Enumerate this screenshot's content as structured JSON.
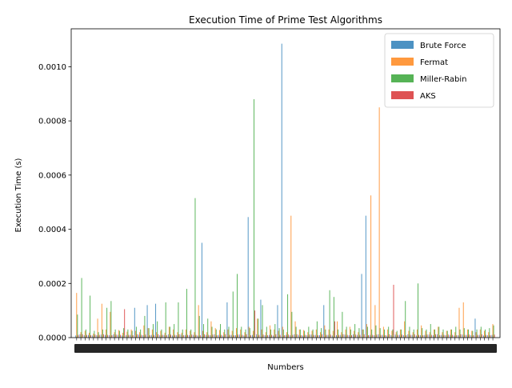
{
  "chart_data": {
    "type": "bar",
    "title": "Execution Time of Prime Test Algorithms",
    "xlabel": "Numbers",
    "ylabel": "Execution Time (s)",
    "ylim": [
      0,
      0.00114
    ],
    "yticks": [
      "0.0000",
      "0.0002",
      "0.0004",
      "0.0006",
      "0.0008",
      "0.0010"
    ],
    "ytick_values": [
      0,
      0.0002,
      0.0004,
      0.0006,
      0.0008,
      0.001
    ],
    "categories_count": 100,
    "xtick_note": "Tick labels along the x-axis are dense overlapping number labels and are not individually legible.",
    "legend_position": "top-right",
    "series": [
      {
        "name": "Brute Force",
        "color": "#1f77b4",
        "values": [
          8e-06,
          1.2e-05,
          9e-06,
          1e-05,
          8e-06,
          9e-06,
          1.1e-05,
          1e-05,
          9e-06,
          1.2e-05,
          1e-05,
          8e-06,
          9e-06,
          1e-05,
          0.00011,
          1.1e-05,
          9e-06,
          0.00012,
          1e-05,
          0.000125,
          9e-06,
          1e-05,
          1.2e-05,
          8e-06,
          9e-06,
          1.1e-05,
          1e-05,
          9e-06,
          1e-05,
          8e-06,
          0.00035,
          1e-05,
          9e-06,
          1.2e-05,
          1e-05,
          8e-06,
          0.00013,
          1e-05,
          9e-06,
          1.1e-05,
          8e-06,
          0.000445,
          1e-05,
          1.2e-05,
          0.00014,
          9e-06,
          1e-05,
          8e-06,
          0.00012,
          0.001085,
          1e-05,
          9e-06,
          1.2e-05,
          1e-05,
          8e-06,
          9e-06,
          1.1e-05,
          1e-05,
          9e-06,
          0.00012,
          1e-05,
          8e-06,
          9e-06,
          1e-05,
          1.1e-05,
          9e-06,
          1.2e-05,
          1e-05,
          0.000235,
          0.00045,
          1e-05,
          9e-06,
          1.2e-05,
          1e-05,
          8e-06,
          9e-06,
          1.1e-05,
          1e-05,
          9e-06,
          1.2e-05,
          1e-05,
          8e-06,
          9e-06,
          1e-05,
          1.1e-05,
          9e-06,
          1.2e-05,
          1e-05,
          9e-06,
          1e-05,
          8e-06,
          9e-06,
          1.1e-05,
          1e-05,
          9e-06,
          7e-05,
          1e-05,
          8e-06,
          9e-06,
          1e-05
        ],
        "note": "Tallest bars visible near x-positions ~0.00109 (largest), ~0.00045, ~0.00044, ~0.00035, ~0.00023; others near zero."
      },
      {
        "name": "Fermat",
        "color": "#ff7f0e",
        "values": [
          0.000165,
          2e-05,
          2.5e-05,
          1.8e-05,
          1.5e-05,
          7e-05,
          0.000125,
          3e-05,
          9.5e-05,
          2e-05,
          2.8e-05,
          1.8e-05,
          2.2e-05,
          3e-05,
          2.5e-05,
          2e-05,
          4.5e-05,
          3.5e-05,
          3e-05,
          2e-05,
          2.5e-05,
          1.8e-05,
          4e-05,
          3e-05,
          2e-05,
          1.8e-05,
          3e-05,
          2.5e-05,
          2e-05,
          0.00012,
          2.5e-05,
          2e-05,
          6e-05,
          3.5e-05,
          2.8e-05,
          2e-05,
          3e-05,
          2.5e-05,
          3.5e-05,
          3e-05,
          2e-05,
          4e-05,
          2.5e-05,
          7e-05,
          3e-05,
          2e-05,
          4.5e-05,
          3e-05,
          2.5e-05,
          4e-05,
          2e-05,
          0.00045,
          6e-05,
          3e-05,
          2.8e-05,
          2e-05,
          2.5e-05,
          3e-05,
          2e-05,
          4.5e-05,
          3e-05,
          2.5e-05,
          6e-05,
          2e-05,
          3e-05,
          4e-05,
          2.5e-05,
          2e-05,
          3e-05,
          5e-05,
          0.000525,
          0.00012,
          0.00085,
          4e-05,
          3e-05,
          2.5e-05,
          2e-05,
          3e-05,
          6e-05,
          2.5e-05,
          2e-05,
          3e-05,
          4.5e-05,
          2.5e-05,
          2e-05,
          3e-05,
          4e-05,
          2e-05,
          2.5e-05,
          3e-05,
          2e-05,
          0.00011,
          0.00013,
          3e-05,
          2.5e-05,
          2e-05,
          3e-05,
          2.5e-05,
          2e-05,
          5e-05
        ]
      },
      {
        "name": "Miller-Rabin",
        "color": "#2ca02c",
        "values": [
          8.5e-05,
          0.00022,
          3e-05,
          0.000155,
          2.5e-05,
          2e-05,
          3e-05,
          0.00011,
          0.000135,
          3e-05,
          2.5e-05,
          3.5e-05,
          3e-05,
          2.5e-05,
          4e-05,
          3e-05,
          8e-05,
          3.5e-05,
          5e-05,
          6e-05,
          3e-05,
          0.00013,
          4e-05,
          5e-05,
          0.00013,
          3e-05,
          0.00018,
          3e-05,
          0.000515,
          8e-05,
          5e-05,
          7e-05,
          4e-05,
          3e-05,
          5e-05,
          3e-05,
          4e-05,
          0.00017,
          0.000235,
          4e-05,
          3e-05,
          3.5e-05,
          0.00088,
          7e-05,
          0.00012,
          4e-05,
          3e-05,
          5e-05,
          3.5e-05,
          3e-05,
          0.00016,
          9.5e-05,
          4e-05,
          3e-05,
          2.5e-05,
          4e-05,
          3e-05,
          6e-05,
          3.5e-05,
          3e-05,
          0.000175,
          0.00015,
          3e-05,
          9.5e-05,
          4e-05,
          3e-05,
          5e-05,
          3.5e-05,
          3e-05,
          4e-05,
          3e-05,
          4.5e-05,
          3.5e-05,
          3e-05,
          4e-05,
          3e-05,
          2.5e-05,
          3e-05,
          0.000135,
          4e-05,
          3e-05,
          0.0002,
          3.5e-05,
          3e-05,
          5e-05,
          3e-05,
          4e-05,
          3e-05,
          2.5e-05,
          3e-05,
          4e-05,
          3e-05,
          3.5e-05,
          3e-05,
          2.5e-05,
          3e-05,
          4e-05,
          3e-05,
          3.5e-05,
          4.5e-05
        ]
      },
      {
        "name": "AKS",
        "color": "#d62728",
        "values": [
          1e-05,
          1.2e-05,
          1e-05,
          9e-06,
          1.1e-05,
          1e-05,
          1.2e-05,
          1e-05,
          9e-06,
          1.1e-05,
          1e-05,
          0.000105,
          1e-05,
          9e-06,
          1.2e-05,
          1e-05,
          1.1e-05,
          9e-06,
          1e-05,
          1.2e-05,
          1e-05,
          9e-06,
          1.1e-05,
          1e-05,
          1.2e-05,
          9e-06,
          1e-05,
          1.1e-05,
          1e-05,
          9e-06,
          1.2e-05,
          1e-05,
          1.1e-05,
          9e-06,
          1e-05,
          1.2e-05,
          1e-05,
          9e-06,
          1.1e-05,
          1e-05,
          1.2e-05,
          9e-06,
          0.0001,
          1e-05,
          1.1e-05,
          9e-06,
          1e-05,
          1.2e-05,
          1e-05,
          9e-06,
          1.1e-05,
          1e-05,
          1.2e-05,
          9e-06,
          1e-05,
          1.1e-05,
          1e-05,
          9e-06,
          1.2e-05,
          1e-05,
          1.1e-05,
          6e-05,
          1e-05,
          1.2e-05,
          1e-05,
          9e-06,
          1.1e-05,
          1e-05,
          1.2e-05,
          9e-06,
          1e-05,
          1.1e-05,
          1e-05,
          9e-06,
          1.2e-05,
          0.000195,
          1e-05,
          1.1e-05,
          9e-06,
          1e-05,
          1.2e-05,
          1e-05,
          9e-06,
          1.1e-05,
          1e-05,
          1.2e-05,
          9e-06,
          1e-05,
          1.1e-05,
          1e-05,
          9e-06,
          1.2e-05,
          1e-05,
          1.1e-05,
          9e-06,
          1e-05,
          1.2e-05,
          1e-05,
          9e-06,
          1.1e-05
        ]
      }
    ]
  }
}
